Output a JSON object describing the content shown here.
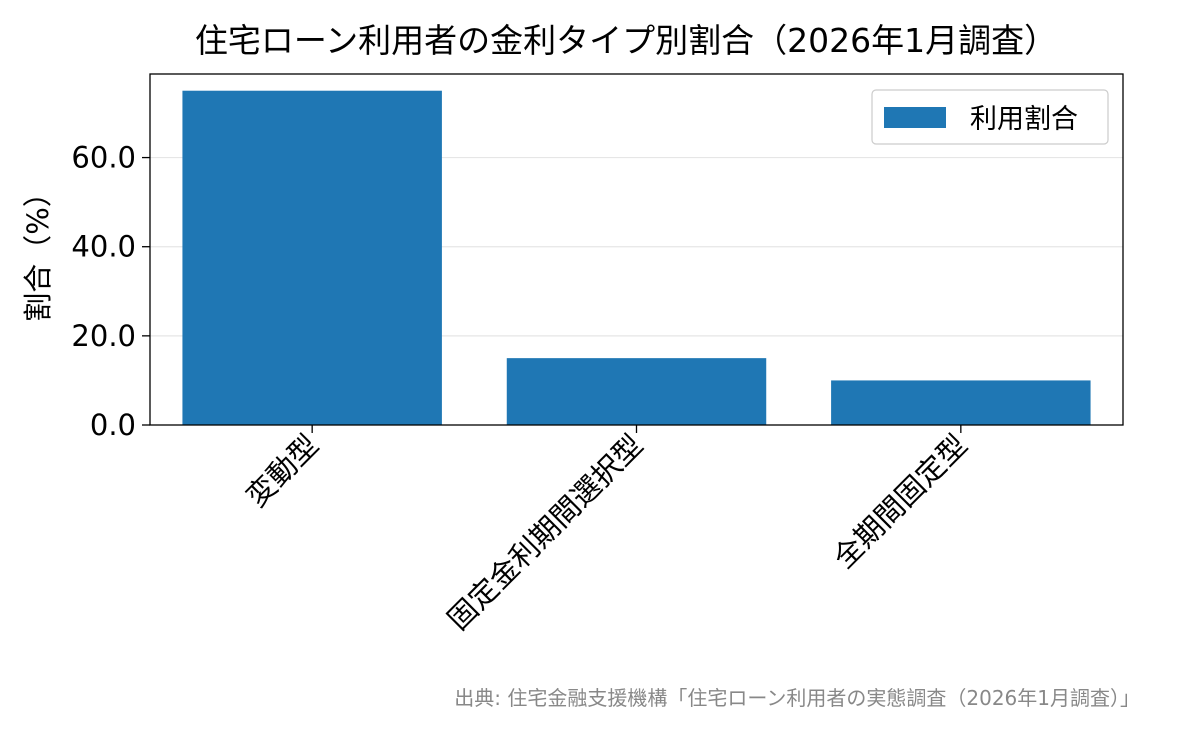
{
  "chart_data": {
    "type": "bar",
    "title": "住宅ローン利用者の金利タイプ別割合（2026年1月調査）",
    "xlabel": "",
    "ylabel": "割合（%）",
    "categories": [
      "変動型",
      "固定金利期間選択型",
      "全期間固定型"
    ],
    "series": [
      {
        "name": "利用割合",
        "values": [
          75.0,
          15.0,
          10.0
        ],
        "color": "#1f77b4"
      }
    ],
    "ylim": [
      0,
      78.75
    ],
    "yticks": [
      0,
      20,
      40,
      60
    ],
    "ytick_labels": [
      "0.0",
      "20.0",
      "40.0",
      "60.0"
    ],
    "grid": true,
    "legend_position": "top-right",
    "source": "出典: 住宅金融支援機構「住宅ローン利用者の実態調査（2026年1月調査）」"
  }
}
